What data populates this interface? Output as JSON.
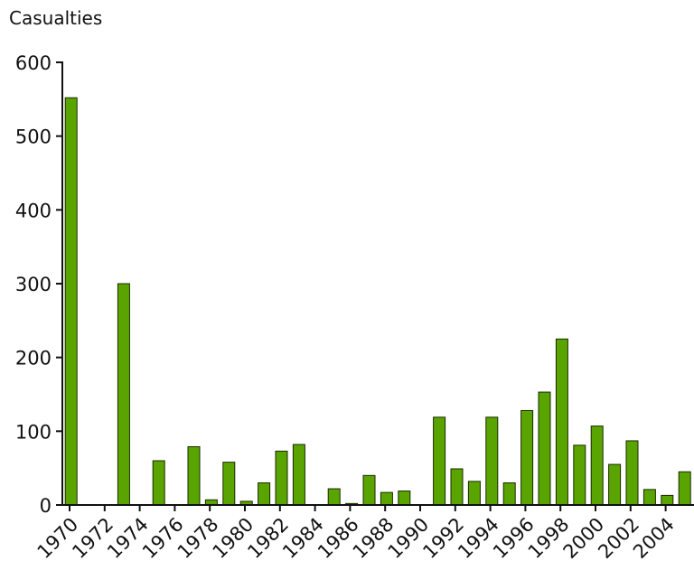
{
  "chart_data": {
    "type": "bar",
    "ylabel": "Casualties",
    "xlabel": "",
    "title": "",
    "ylim": [
      0,
      600
    ],
    "y_ticks": [
      0,
      100,
      200,
      300,
      400,
      500,
      600
    ],
    "categories": [
      1970,
      1971,
      1972,
      1973,
      1974,
      1975,
      1976,
      1977,
      1978,
      1979,
      1980,
      1981,
      1982,
      1983,
      1984,
      1985,
      1986,
      1987,
      1988,
      1989,
      1990,
      1991,
      1992,
      1993,
      1994,
      1995,
      1996,
      1997,
      1998,
      1999,
      2000,
      2001,
      2002,
      2003,
      2004,
      2005
    ],
    "values": [
      552,
      0,
      0,
      300,
      0,
      60,
      0,
      79,
      7,
      58,
      5,
      30,
      73,
      82,
      0,
      22,
      2,
      40,
      17,
      19,
      0,
      119,
      49,
      32,
      119,
      30,
      128,
      153,
      225,
      81,
      107,
      55,
      87,
      21,
      13,
      45
    ],
    "x_tick_labels": [
      "1970",
      "1972",
      "1974",
      "1976",
      "1978",
      "1980",
      "1982",
      "1984",
      "1986",
      "1988",
      "1990",
      "1992",
      "1994",
      "1996",
      "1998",
      "2000",
      "2002",
      "2004"
    ],
    "bar_color": "#5aa400",
    "grid": false,
    "legend": "none"
  }
}
